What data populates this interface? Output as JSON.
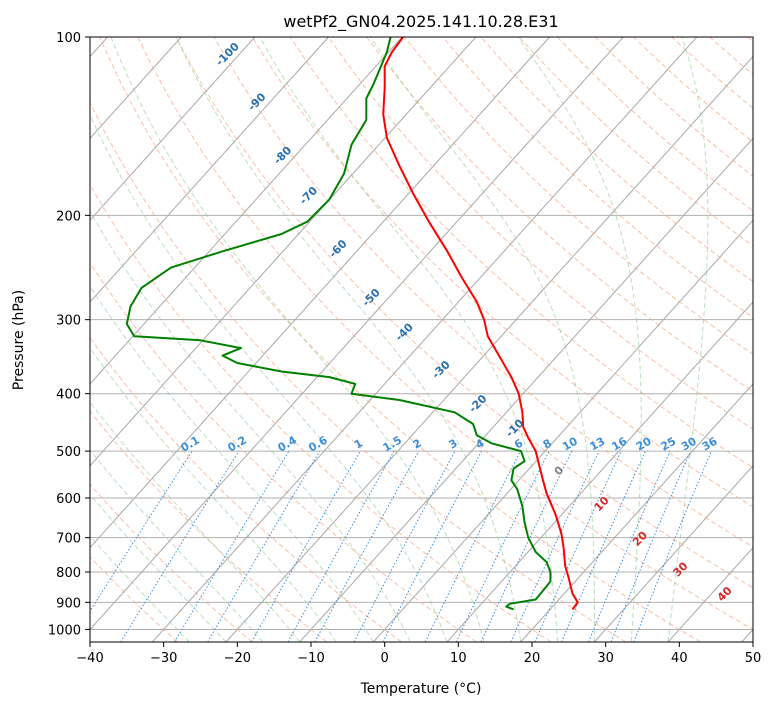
{
  "chart_data": {
    "type": "line",
    "title": "wetPf2_GN04.2025.141.10.28.E31",
    "xlabel": "Temperature (°C)",
    "ylabel": "Pressure (hPa)",
    "xlim": [
      -40,
      50
    ],
    "ylim": [
      1050,
      100
    ],
    "y_scale": "log",
    "x_ticks": [
      -40,
      -30,
      -20,
      -10,
      0,
      10,
      20,
      30,
      40,
      50
    ],
    "y_ticks": [
      100,
      200,
      300,
      400,
      500,
      600,
      700,
      800,
      900,
      1000
    ],
    "x_tick_labels": [
      "−40",
      "−30",
      "−20",
      "−10",
      "0",
      "10",
      "20",
      "30",
      "40",
      "50"
    ],
    "y_tick_labels": [
      "100",
      "200",
      "300",
      "400",
      "500",
      "600",
      "700",
      "800",
      "900",
      "1000"
    ],
    "grid": true,
    "isotherm_labels": [
      {
        "text": "-100",
        "x": -21,
        "y": 108
      },
      {
        "text": "-90",
        "x": -17,
        "y": 130
      },
      {
        "text": "-80",
        "x": -13.5,
        "y": 160
      },
      {
        "text": "-70",
        "x": -10,
        "y": 187
      },
      {
        "text": "-60",
        "x": -6,
        "y": 230
      },
      {
        "text": "-50",
        "x": -1.5,
        "y": 278
      },
      {
        "text": "-40",
        "x": 3,
        "y": 318
      },
      {
        "text": "-30",
        "x": 8,
        "y": 368
      },
      {
        "text": "-20",
        "x": 13,
        "y": 420
      },
      {
        "text": "-10",
        "x": 18,
        "y": 462
      }
    ],
    "dry_adiabat_labels": [
      {
        "text": "0",
        "x": 24,
        "y": 545
      },
      {
        "text": "10",
        "x": 29.8,
        "y": 620
      },
      {
        "text": "20",
        "x": 35,
        "y": 710
      },
      {
        "text": "30",
        "x": 40.5,
        "y": 800
      },
      {
        "text": "40",
        "x": 46.5,
        "y": 880
      }
    ],
    "mixing_ratio_labels": [
      "0.1",
      "0.2",
      "0.4",
      "0.6",
      "1",
      "1.5",
      "2",
      "3",
      "4",
      "6",
      "8",
      "10",
      "13",
      "16",
      "20",
      "25",
      "30",
      "36"
    ],
    "series": [
      {
        "color": "#ff0000",
        "points": [
          [
            25.5,
            925
          ],
          [
            26.2,
            900
          ],
          [
            25.5,
            870
          ],
          [
            25.0,
            820
          ],
          [
            24.5,
            780
          ],
          [
            24.3,
            730
          ],
          [
            24.0,
            690
          ],
          [
            23.2,
            640
          ],
          [
            22.0,
            590
          ],
          [
            21.5,
            560
          ],
          [
            21.0,
            530
          ],
          [
            20.5,
            500
          ],
          [
            19.5,
            475
          ],
          [
            18.8,
            455
          ],
          [
            18.7,
            430
          ],
          [
            18.2,
            400
          ],
          [
            17.2,
            375
          ],
          [
            15.8,
            350
          ],
          [
            14.0,
            320
          ],
          [
            13.5,
            300
          ],
          [
            12.5,
            280
          ],
          [
            10.5,
            255
          ],
          [
            8.5,
            230
          ],
          [
            6.0,
            205
          ],
          [
            4.0,
            185
          ],
          [
            2.0,
            165
          ],
          [
            0.3,
            148
          ],
          [
            -0.2,
            135
          ],
          [
            0.0,
            122
          ],
          [
            0.0,
            112
          ],
          [
            1.0,
            106
          ],
          [
            2.5,
            100
          ]
        ]
      },
      {
        "color": "#008000",
        "points": [
          [
            17.5,
            925
          ],
          [
            16.5,
            915
          ],
          [
            17.0,
            905
          ],
          [
            20.5,
            890
          ],
          [
            21.5,
            860
          ],
          [
            22.5,
            830
          ],
          [
            22.5,
            800
          ],
          [
            22.0,
            770
          ],
          [
            20.5,
            740
          ],
          [
            19.5,
            700
          ],
          [
            19.0,
            660
          ],
          [
            18.7,
            620
          ],
          [
            18.0,
            580
          ],
          [
            17.2,
            560
          ],
          [
            17.5,
            535
          ],
          [
            19.0,
            520
          ],
          [
            18.5,
            500
          ],
          [
            14.5,
            485
          ],
          [
            12.5,
            470
          ],
          [
            12.0,
            450
          ],
          [
            9.5,
            430
          ],
          [
            2.0,
            410
          ],
          [
            -4.5,
            400
          ],
          [
            -4.0,
            385
          ],
          [
            -7.5,
            375
          ],
          [
            -14.0,
            367
          ],
          [
            -20.0,
            355
          ],
          [
            -22.0,
            345
          ],
          [
            -19.5,
            335
          ],
          [
            -25.0,
            325
          ],
          [
            -34.0,
            320
          ],
          [
            -35.0,
            305
          ],
          [
            -34.5,
            285
          ],
          [
            -33.0,
            265
          ],
          [
            -29.0,
            245
          ],
          [
            -22.0,
            230
          ],
          [
            -14.0,
            215
          ],
          [
            -10.5,
            205
          ],
          [
            -7.5,
            188
          ],
          [
            -5.5,
            170
          ],
          [
            -4.5,
            152
          ],
          [
            -2.5,
            138
          ],
          [
            -2.5,
            127
          ],
          [
            -1.5,
            120
          ],
          [
            -0.5,
            112
          ],
          [
            0.3,
            106
          ],
          [
            0.8,
            100
          ]
        ]
      }
    ]
  }
}
